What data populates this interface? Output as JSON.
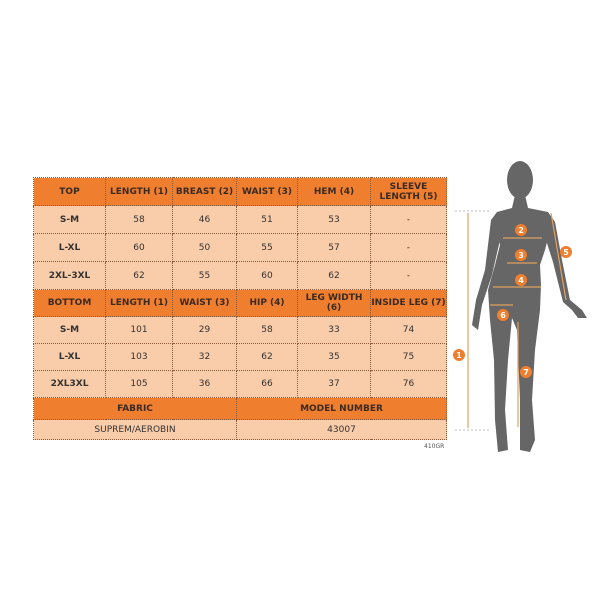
{
  "top_table": {
    "headers": [
      "TOP",
      "LENGTH (1)",
      "BREAST (2)",
      "WAIST (3)",
      "HEM (4)",
      "SLEEVE LENGTH (5)"
    ],
    "rows": [
      [
        "S-M",
        "58",
        "46",
        "51",
        "53",
        "-"
      ],
      [
        "L-XL",
        "60",
        "50",
        "55",
        "57",
        "-"
      ],
      [
        "2XL-3XL",
        "62",
        "55",
        "60",
        "62",
        "-"
      ]
    ]
  },
  "bottom_table": {
    "headers": [
      "BOTTOM",
      "LENGTH (1)",
      "WAIST (3)",
      "HIP (4)",
      "LEG WIDTH (6)",
      "INSIDE LEG (7)"
    ],
    "rows": [
      [
        "S-M",
        "101",
        "29",
        "58",
        "33",
        "74"
      ],
      [
        "L-XL",
        "103",
        "32",
        "62",
        "35",
        "75"
      ],
      [
        "2XL3XL",
        "105",
        "36",
        "66",
        "37",
        "76"
      ]
    ]
  },
  "footer": {
    "fabric_label": "FABRIC",
    "model_label": "MODEL NUMBER",
    "fabric_value": "SUPREM/AEROBIN",
    "model_value": "43007"
  },
  "code": "410GR",
  "figure": {
    "markers": [
      "1",
      "2",
      "3",
      "4",
      "5",
      "6",
      "7"
    ]
  },
  "colors": {
    "header": "#ef7f2e",
    "cell": "#f9ccaa",
    "silhouette": "#666666",
    "measure": "#e0a060"
  }
}
